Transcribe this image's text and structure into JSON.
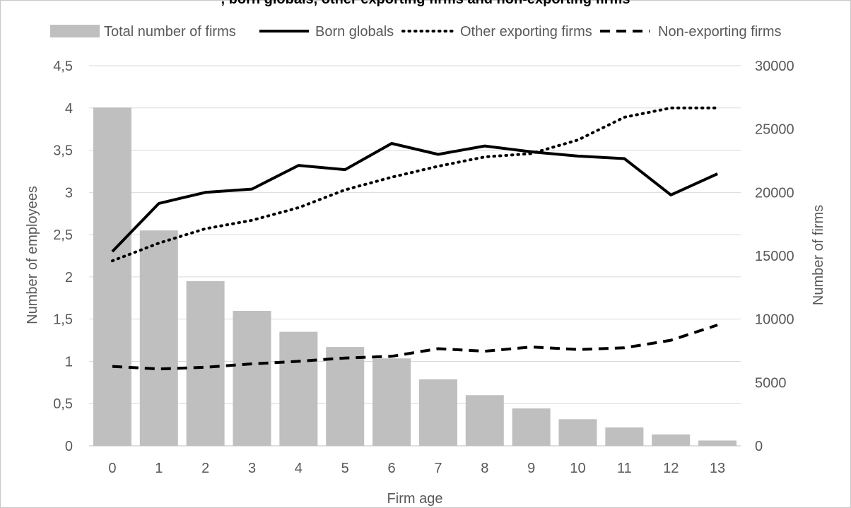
{
  "title_fragment": ", born globals, other exporting firms and non-exporting firms",
  "chart_data": {
    "type": "bar",
    "xlabel": "Firm age",
    "ylabel_left": "Number of employees",
    "ylabel_right": "Number of firms",
    "categories": [
      "0",
      "1",
      "2",
      "3",
      "4",
      "5",
      "6",
      "7",
      "8",
      "9",
      "10",
      "11",
      "12",
      "13"
    ],
    "y_left": {
      "ylim": [
        0,
        4.5
      ],
      "ticks": [
        "0",
        "0,5",
        "1",
        "1,5",
        "2",
        "2,5",
        "3",
        "3,5",
        "4",
        "4,5"
      ]
    },
    "y_right": {
      "ylim": [
        0,
        30000
      ],
      "ticks": [
        "0",
        "5000",
        "10000",
        "15000",
        "20000",
        "25000",
        "30000"
      ]
    },
    "grid": true,
    "legend_position": "top",
    "series": [
      {
        "name": "Total number of firms",
        "kind": "bar",
        "axis": "right",
        "color": "#bfbfbf",
        "values": [
          26700,
          17000,
          13000,
          10650,
          9000,
          7800,
          6900,
          5250,
          4000,
          2950,
          2100,
          1450,
          900,
          420
        ]
      },
      {
        "name": "Born globals",
        "kind": "line",
        "style": "solid",
        "axis": "left",
        "color": "#000000",
        "values": [
          2.3,
          2.87,
          3.0,
          3.04,
          3.32,
          3.27,
          3.58,
          3.45,
          3.55,
          3.48,
          3.43,
          3.4,
          2.97,
          3.22
        ]
      },
      {
        "name": "Other exporting firms",
        "kind": "line",
        "style": "dotted",
        "axis": "left",
        "color": "#000000",
        "values": [
          2.19,
          2.4,
          2.57,
          2.67,
          2.82,
          3.03,
          3.18,
          3.31,
          3.42,
          3.46,
          3.62,
          3.89,
          4.0,
          4.0
        ]
      },
      {
        "name": "Non-exporting firms",
        "kind": "line",
        "style": "dashed",
        "axis": "left",
        "color": "#000000",
        "values": [
          0.94,
          0.91,
          0.93,
          0.97,
          1.0,
          1.04,
          1.06,
          1.15,
          1.12,
          1.17,
          1.14,
          1.16,
          1.25,
          1.43
        ]
      }
    ]
  }
}
